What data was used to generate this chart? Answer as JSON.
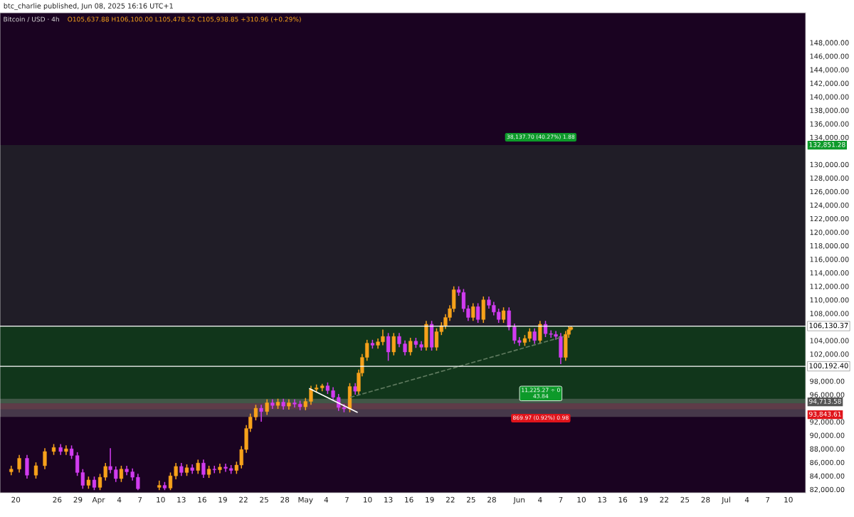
{
  "chart_data": {
    "type": "candlestick",
    "title": "Bitcoin / USD · 4h",
    "subtitle": "O105,637.88 H106,100.00 L105,478.52 C105,938.85 +310.96 (+0.29%)",
    "annotations": [
      "btc_charlie published, Jun 08, 2025 16:16 UTC+1",
      "38,137.70 (40.27%) 1.88",
      "11,225.27 ÷ 0\n43.84",
      "869.97 (0.92%) 0.98"
    ],
    "x": [
      "2025-03-19T08:00",
      "2025-03-20T12:00",
      "2025-03-21T15:00",
      "2025-03-22T22:00",
      "2025-03-24T05:00",
      "2025-03-25T12:00",
      "2025-03-26T12:00",
      "2025-03-27T07:00",
      "2025-03-28T02:00",
      "2025-03-28T22:00",
      "2025-03-29T17:00",
      "2025-03-30T13:00",
      "2025-03-31T09:00",
      "2025-04-01T05:00",
      "2025-04-02T00:00",
      "2025-04-02T17:00",
      "2025-04-03T12:00",
      "2025-04-04T07:00",
      "2025-04-05T02:00",
      "2025-04-05T22:00",
      "2025-04-06T17:00",
      "2025-04-09T19:00",
      "2025-04-10T14:00",
      "2025-04-11T10:00",
      "2025-04-12T05:00",
      "2025-04-13T00:00",
      "2025-04-13T19:00",
      "2025-04-14T14:00",
      "2025-04-15T10:00",
      "2025-04-16T05:00",
      "2025-04-17T00:00",
      "2025-04-17T19:00",
      "2025-04-18T14:00",
      "2025-04-19T10:00",
      "2025-04-20T05:00",
      "2025-04-21T00:00",
      "2025-04-21T17:00",
      "2025-04-22T10:00",
      "2025-04-23T00:00",
      "2025-04-23T19:00",
      "2025-04-24T14:00",
      "2025-04-25T10:00",
      "2025-04-26T05:00",
      "2025-04-27T00:00",
      "2025-04-27T19:00",
      "2025-04-28T14:00",
      "2025-04-29T10:00",
      "2025-04-30T05:00",
      "2025-05-01T00:00",
      "2025-05-01T19:00",
      "2025-05-02T14:00",
      "2025-05-03T10:00",
      "2025-05-04T05:00",
      "2025-05-05T00:00",
      "2025-05-05T19:00",
      "2025-05-06T14:00",
      "2025-05-07T10:00",
      "2025-05-08T05:00",
      "2025-05-08T17:00",
      "2025-05-09T05:00",
      "2025-05-09T22:00",
      "2025-05-10T17:00",
      "2025-05-11T12:00",
      "2025-05-12T05:00",
      "2025-05-13T00:00",
      "2025-05-13T19:00",
      "2025-05-14T14:00",
      "2025-05-15T10:00",
      "2025-05-16T05:00",
      "2025-05-17T00:00",
      "2025-05-17T19:00",
      "2025-05-18T12:00",
      "2025-05-19T07:00",
      "2025-05-20T00:00",
      "2025-05-20T17:00",
      "2025-05-21T07:00",
      "2025-05-21T22:00",
      "2025-05-22T12:00",
      "2025-05-23T05:00",
      "2025-05-23T22:00",
      "2025-05-24T14:00",
      "2025-05-25T07:00",
      "2025-05-26T00:00",
      "2025-05-26T19:00",
      "2025-05-27T14:00",
      "2025-05-28T07:00",
      "2025-05-29T00:00",
      "2025-05-29T17:00",
      "2025-05-30T12:00",
      "2025-05-31T07:00",
      "2025-06-01T00:00",
      "2025-06-01T19:00",
      "2025-06-02T12:00",
      "2025-06-03T05:00",
      "2025-06-04T00:00",
      "2025-06-04T19:00",
      "2025-06-05T14:00",
      "2025-06-06T07:00",
      "2025-06-07T00:00",
      "2025-06-07T17:00",
      "2025-06-08T04:00",
      "2025-06-08T12:00"
    ],
    "ohlc": [
      [
        84600,
        85500,
        84100,
        85000
      ],
      [
        85000,
        87100,
        84500,
        86600
      ],
      [
        86600,
        87100,
        83600,
        84100
      ],
      [
        84100,
        86000,
        83600,
        85500
      ],
      [
        85500,
        88100,
        85000,
        87600
      ],
      [
        87600,
        88700,
        87100,
        88200
      ],
      [
        88200,
        88700,
        87100,
        87600
      ],
      [
        87600,
        88500,
        87100,
        88000
      ],
      [
        88000,
        88500,
        86500,
        87000
      ],
      [
        87000,
        87500,
        84000,
        84500
      ],
      [
        84500,
        85000,
        82100,
        82600
      ],
      [
        82600,
        83900,
        82100,
        83400
      ],
      [
        83400,
        83900,
        81900,
        82300
      ],
      [
        82300,
        84300,
        81900,
        83800
      ],
      [
        83800,
        85900,
        83300,
        85400
      ],
      [
        85400,
        88100,
        84400,
        84900
      ],
      [
        84900,
        85400,
        83100,
        83600
      ],
      [
        83600,
        85500,
        83100,
        85000
      ],
      [
        85000,
        85500,
        84100,
        84600
      ],
      [
        84600,
        85100,
        83300,
        83800
      ],
      [
        83800,
        84300,
        81900,
        82100
      ],
      [
        82300,
        83300,
        81900,
        82600
      ],
      [
        82600,
        83100,
        81900,
        82200
      ],
      [
        82200,
        84500,
        81900,
        84000
      ],
      [
        84000,
        85900,
        83500,
        85400
      ],
      [
        85400,
        85900,
        84000,
        84500
      ],
      [
        84500,
        85700,
        84000,
        85200
      ],
      [
        85200,
        85700,
        84300,
        84800
      ],
      [
        84800,
        86400,
        84300,
        85900
      ],
      [
        85900,
        86400,
        83700,
        84200
      ],
      [
        84200,
        85500,
        83700,
        85000
      ],
      [
        85000,
        85500,
        84400,
        84900
      ],
      [
        84900,
        85800,
        84400,
        85300
      ],
      [
        85300,
        85800,
        84600,
        85100
      ],
      [
        85100,
        85600,
        84300,
        84800
      ],
      [
        84800,
        86100,
        84300,
        85600
      ],
      [
        85600,
        88400,
        85100,
        87900
      ],
      [
        87900,
        91500,
        87400,
        91000
      ],
      [
        91000,
        93200,
        90500,
        92700
      ],
      [
        92700,
        94500,
        92200,
        94000
      ],
      [
        94000,
        94500,
        92000,
        93500
      ],
      [
        93500,
        95300,
        93000,
        94800
      ],
      [
        94800,
        95300,
        93900,
        94400
      ],
      [
        94400,
        95400,
        93900,
        94900
      ],
      [
        94900,
        95400,
        93800,
        94300
      ],
      [
        94300,
        95300,
        93800,
        94800
      ],
      [
        94800,
        95300,
        94100,
        94600
      ],
      [
        94600,
        95100,
        93700,
        94200
      ],
      [
        94200,
        95500,
        93700,
        95000
      ],
      [
        95000,
        97300,
        94500,
        96800
      ],
      [
        96800,
        97500,
        96300,
        97000
      ],
      [
        97000,
        97600,
        96500,
        97300
      ],
      [
        97300,
        97800,
        96100,
        96600
      ],
      [
        96600,
        97100,
        95100,
        95600
      ],
      [
        95600,
        96100,
        93600,
        94100
      ],
      [
        94100,
        94600,
        93400,
        93900
      ],
      [
        93900,
        97700,
        93400,
        97200
      ],
      [
        97200,
        97700,
        96000,
        96500
      ],
      [
        96500,
        99700,
        96000,
        99200
      ],
      [
        99200,
        102000,
        98700,
        101500
      ],
      [
        101500,
        104100,
        101000,
        103600
      ],
      [
        103600,
        104100,
        102800,
        103300
      ],
      [
        103300,
        104300,
        102800,
        103800
      ],
      [
        103800,
        105600,
        103300,
        104600
      ],
      [
        104600,
        105100,
        101000,
        102300
      ],
      [
        102300,
        105100,
        101800,
        104600
      ],
      [
        104600,
        105100,
        103000,
        103500
      ],
      [
        103500,
        104000,
        101800,
        102300
      ],
      [
        102300,
        104400,
        101800,
        103900
      ],
      [
        103900,
        104400,
        102900,
        103400
      ],
      [
        103400,
        103900,
        102500,
        103000
      ],
      [
        103000,
        106900,
        102500,
        106400
      ],
      [
        106400,
        106900,
        102500,
        103000
      ],
      [
        103000,
        105800,
        102500,
        105300
      ],
      [
        105300,
        106700,
        104800,
        106200
      ],
      [
        106200,
        107900,
        105700,
        107400
      ],
      [
        107400,
        109200,
        106900,
        108700
      ],
      [
        108700,
        112000,
        108200,
        111500
      ],
      [
        111500,
        112000,
        110600,
        111100
      ],
      [
        111100,
        111600,
        108200,
        108700
      ],
      [
        108700,
        109200,
        106900,
        107400
      ],
      [
        107400,
        109500,
        106900,
        109000
      ],
      [
        109000,
        109500,
        106600,
        107100
      ],
      [
        107100,
        110500,
        106600,
        110000
      ],
      [
        110000,
        110500,
        108700,
        109200
      ],
      [
        109200,
        109700,
        107700,
        108200
      ],
      [
        108200,
        108700,
        106600,
        107100
      ],
      [
        107100,
        108900,
        106600,
        108400
      ],
      [
        108400,
        108900,
        105500,
        106000
      ],
      [
        106000,
        106500,
        103500,
        104000
      ],
      [
        104000,
        104500,
        103200,
        103700
      ],
      [
        103700,
        104800,
        103200,
        104300
      ],
      [
        104300,
        105800,
        103800,
        105300
      ],
      [
        105300,
        105800,
        103500,
        104000
      ],
      [
        104000,
        106900,
        103500,
        106400
      ],
      [
        106400,
        106900,
        104500,
        105000
      ],
      [
        105000,
        105500,
        104400,
        104900
      ],
      [
        104900,
        105400,
        104100,
        104600
      ],
      [
        104600,
        105100,
        100500,
        101500
      ],
      [
        101500,
        105400,
        101000,
        104900
      ],
      [
        104900,
        106100,
        104400,
        105600
      ],
      [
        105637.88,
        106100,
        105478.52,
        105938.85
      ]
    ],
    "colors": [
      "#f7a21b",
      "#f7a21b",
      "#d13cf0",
      "#f7a21b",
      "#f7a21b",
      "#f7a21b",
      "#d13cf0",
      "#f7a21b",
      "#d13cf0",
      "#d13cf0",
      "#d13cf0",
      "#f7a21b",
      "#d13cf0",
      "#f7a21b",
      "#f7a21b",
      "#d13cf0",
      "#d13cf0",
      "#f7a21b",
      "#d13cf0",
      "#d13cf0",
      "#d13cf0",
      "#f7a21b",
      "#d13cf0",
      "#f7a21b",
      "#f7a21b",
      "#d13cf0",
      "#f7a21b",
      "#d13cf0",
      "#f7a21b",
      "#d13cf0",
      "#f7a21b",
      "#d13cf0",
      "#f7a21b",
      "#d13cf0",
      "#d13cf0",
      "#f7a21b",
      "#f7a21b",
      "#f7a21b",
      "#f7a21b",
      "#f7a21b",
      "#d13cf0",
      "#f7a21b",
      "#d13cf0",
      "#f7a21b",
      "#d13cf0",
      "#f7a21b",
      "#d13cf0",
      "#d13cf0",
      "#f7a21b",
      "#f7a21b",
      "#f7a21b",
      "#f7a21b",
      "#d13cf0",
      "#d13cf0",
      "#d13cf0",
      "#d13cf0",
      "#f7a21b",
      "#d13cf0",
      "#f7a21b",
      "#f7a21b",
      "#f7a21b",
      "#d13cf0",
      "#f7a21b",
      "#f7a21b",
      "#d13cf0",
      "#f7a21b",
      "#d13cf0",
      "#d13cf0",
      "#f7a21b",
      "#d13cf0",
      "#d13cf0",
      "#f7a21b",
      "#d13cf0",
      "#f7a21b",
      "#f7a21b",
      "#f7a21b",
      "#f7a21b",
      "#f7a21b",
      "#d13cf0",
      "#d13cf0",
      "#d13cf0",
      "#f7a21b",
      "#d13cf0",
      "#f7a21b",
      "#d13cf0",
      "#d13cf0",
      "#d13cf0",
      "#f7a21b",
      "#d13cf0",
      "#d13cf0",
      "#d13cf0",
      "#f7a21b",
      "#f7a21b",
      "#d13cf0",
      "#f7a21b",
      "#d13cf0",
      "#d13cf0",
      "#d13cf0",
      "#d13cf0",
      "#f7a21b",
      "#f7a21b",
      "#f7a21b"
    ],
    "series": [
      {
        "type": "line",
        "x": [
          "2025-05-01T14:00",
          "2025-05-08T12:00"
        ],
        "values": [
          96900,
          93400
        ],
        "color": "#ffffff",
        "line_style": "solid"
      },
      {
        "type": "line",
        "x": [
          "2025-05-07T12:00",
          "2025-06-07T12:00"
        ],
        "values": [
          95600,
          104600
        ],
        "color": "#5f7a5f",
        "line_style": "dashed"
      }
    ],
    "ref_lines": [
      {
        "axis": "y",
        "value": 106130.37,
        "label": "106,130.37",
        "color": "#ffffff"
      },
      {
        "axis": "y",
        "value": 100192.4,
        "label": "100,192.40",
        "color": "#ffffff"
      }
    ],
    "bands": [
      {
        "axis": "y",
        "from": 106130.37,
        "to": 132851.28,
        "label": "132,851.28",
        "color": "#222228"
      },
      {
        "axis": "y",
        "from": 94713.58,
        "to": 106130.37,
        "label": "94,713.58",
        "color": "#10401a"
      },
      {
        "axis": "y",
        "from": 93843.61,
        "to": 94713.58,
        "label": "93,843.61",
        "color": "#4a0a1c"
      },
      {
        "axis": "y",
        "from": 92700,
        "to": 95400,
        "color": "#8a8a8a"
      }
    ],
    "xlim": [
      "2025-03-17T17:00",
      "2025-07-12T12:00"
    ],
    "xticks": [
      {
        "value": "2025-03-20",
        "label": "20"
      },
      {
        "value": "2025-03-26",
        "label": "26"
      },
      {
        "value": "2025-03-29",
        "label": "29"
      },
      {
        "value": "2025-04-01",
        "label": "Apr"
      },
      {
        "value": "2025-04-04",
        "label": "4"
      },
      {
        "value": "2025-04-07",
        "label": "7"
      },
      {
        "value": "2025-04-10",
        "label": "10"
      },
      {
        "value": "2025-04-13",
        "label": "13"
      },
      {
        "value": "2025-04-16",
        "label": "16"
      },
      {
        "value": "2025-04-19",
        "label": "19"
      },
      {
        "value": "2025-04-22",
        "label": "22"
      },
      {
        "value": "2025-04-25",
        "label": "25"
      },
      {
        "value": "2025-04-28",
        "label": "28"
      },
      {
        "value": "2025-05-01",
        "label": "May"
      },
      {
        "value": "2025-05-04",
        "label": "4"
      },
      {
        "value": "2025-05-07",
        "label": "7"
      },
      {
        "value": "2025-05-10",
        "label": "10"
      },
      {
        "value": "2025-05-13",
        "label": "13"
      },
      {
        "value": "2025-05-16",
        "label": "16"
      },
      {
        "value": "2025-05-19",
        "label": "19"
      },
      {
        "value": "2025-05-22",
        "label": "22"
      },
      {
        "value": "2025-05-25",
        "label": "25"
      },
      {
        "value": "2025-05-28",
        "label": "28"
      },
      {
        "value": "2025-06-01",
        "label": "Jun"
      },
      {
        "value": "2025-06-04",
        "label": "4"
      },
      {
        "value": "2025-06-07",
        "label": "7"
      },
      {
        "value": "2025-06-10",
        "label": "10"
      },
      {
        "value": "2025-06-13",
        "label": "13"
      },
      {
        "value": "2025-06-16",
        "label": "16"
      },
      {
        "value": "2025-06-19",
        "label": "19"
      },
      {
        "value": "2025-06-22",
        "label": "22"
      },
      {
        "value": "2025-06-25",
        "label": "25"
      },
      {
        "value": "2025-06-28",
        "label": "28"
      },
      {
        "value": "2025-07-01",
        "label": "Jul"
      },
      {
        "value": "2025-07-04",
        "label": "4"
      },
      {
        "value": "2025-07-07",
        "label": "7"
      },
      {
        "value": "2025-07-10",
        "label": "10"
      }
    ],
    "ylim": [
      81500,
      152400
    ],
    "yticks": [
      {
        "value": 82000,
        "label": "82,000.00"
      },
      {
        "value": 84000,
        "label": "84,000.00"
      },
      {
        "value": 86000,
        "label": "86,000.00"
      },
      {
        "value": 88000,
        "label": "88,000.00"
      },
      {
        "value": 90000,
        "label": "90,000.00"
      },
      {
        "value": 92000,
        "label": "92,000.00"
      },
      {
        "value": 96000,
        "label": "96,000.00"
      },
      {
        "value": 98000,
        "label": "98,000.00"
      },
      {
        "value": 102000,
        "label": "102,000.00"
      },
      {
        "value": 104000,
        "label": "104,000.00"
      },
      {
        "value": 108000,
        "label": "108,000.00"
      },
      {
        "value": 110000,
        "label": "110,000.00"
      },
      {
        "value": 112000,
        "label": "112,000.00"
      },
      {
        "value": 114000,
        "label": "114,000.00"
      },
      {
        "value": 116000,
        "label": "116,000.00"
      },
      {
        "value": 118000,
        "label": "118,000.00"
      },
      {
        "value": 120000,
        "label": "120,000.00"
      },
      {
        "value": 122000,
        "label": "122,000.00"
      },
      {
        "value": 124000,
        "label": "124,000.00"
      },
      {
        "value": 126000,
        "label": "126,000.00"
      },
      {
        "value": 128000,
        "label": "128,000.00"
      },
      {
        "value": 130000,
        "label": "130,000.00"
      },
      {
        "value": 134000,
        "label": "134,000.00"
      },
      {
        "value": 136000,
        "label": "136,000.00"
      },
      {
        "value": 138000,
        "label": "138,000.00"
      },
      {
        "value": 140000,
        "label": "140,000.00"
      },
      {
        "value": 142000,
        "label": "142,000.00"
      },
      {
        "value": 144000,
        "label": "144,000.00"
      },
      {
        "value": 146000,
        "label": "146,000.00"
      },
      {
        "value": 148000,
        "label": "148,000.00"
      }
    ],
    "grid": false,
    "legend": false
  }
}
